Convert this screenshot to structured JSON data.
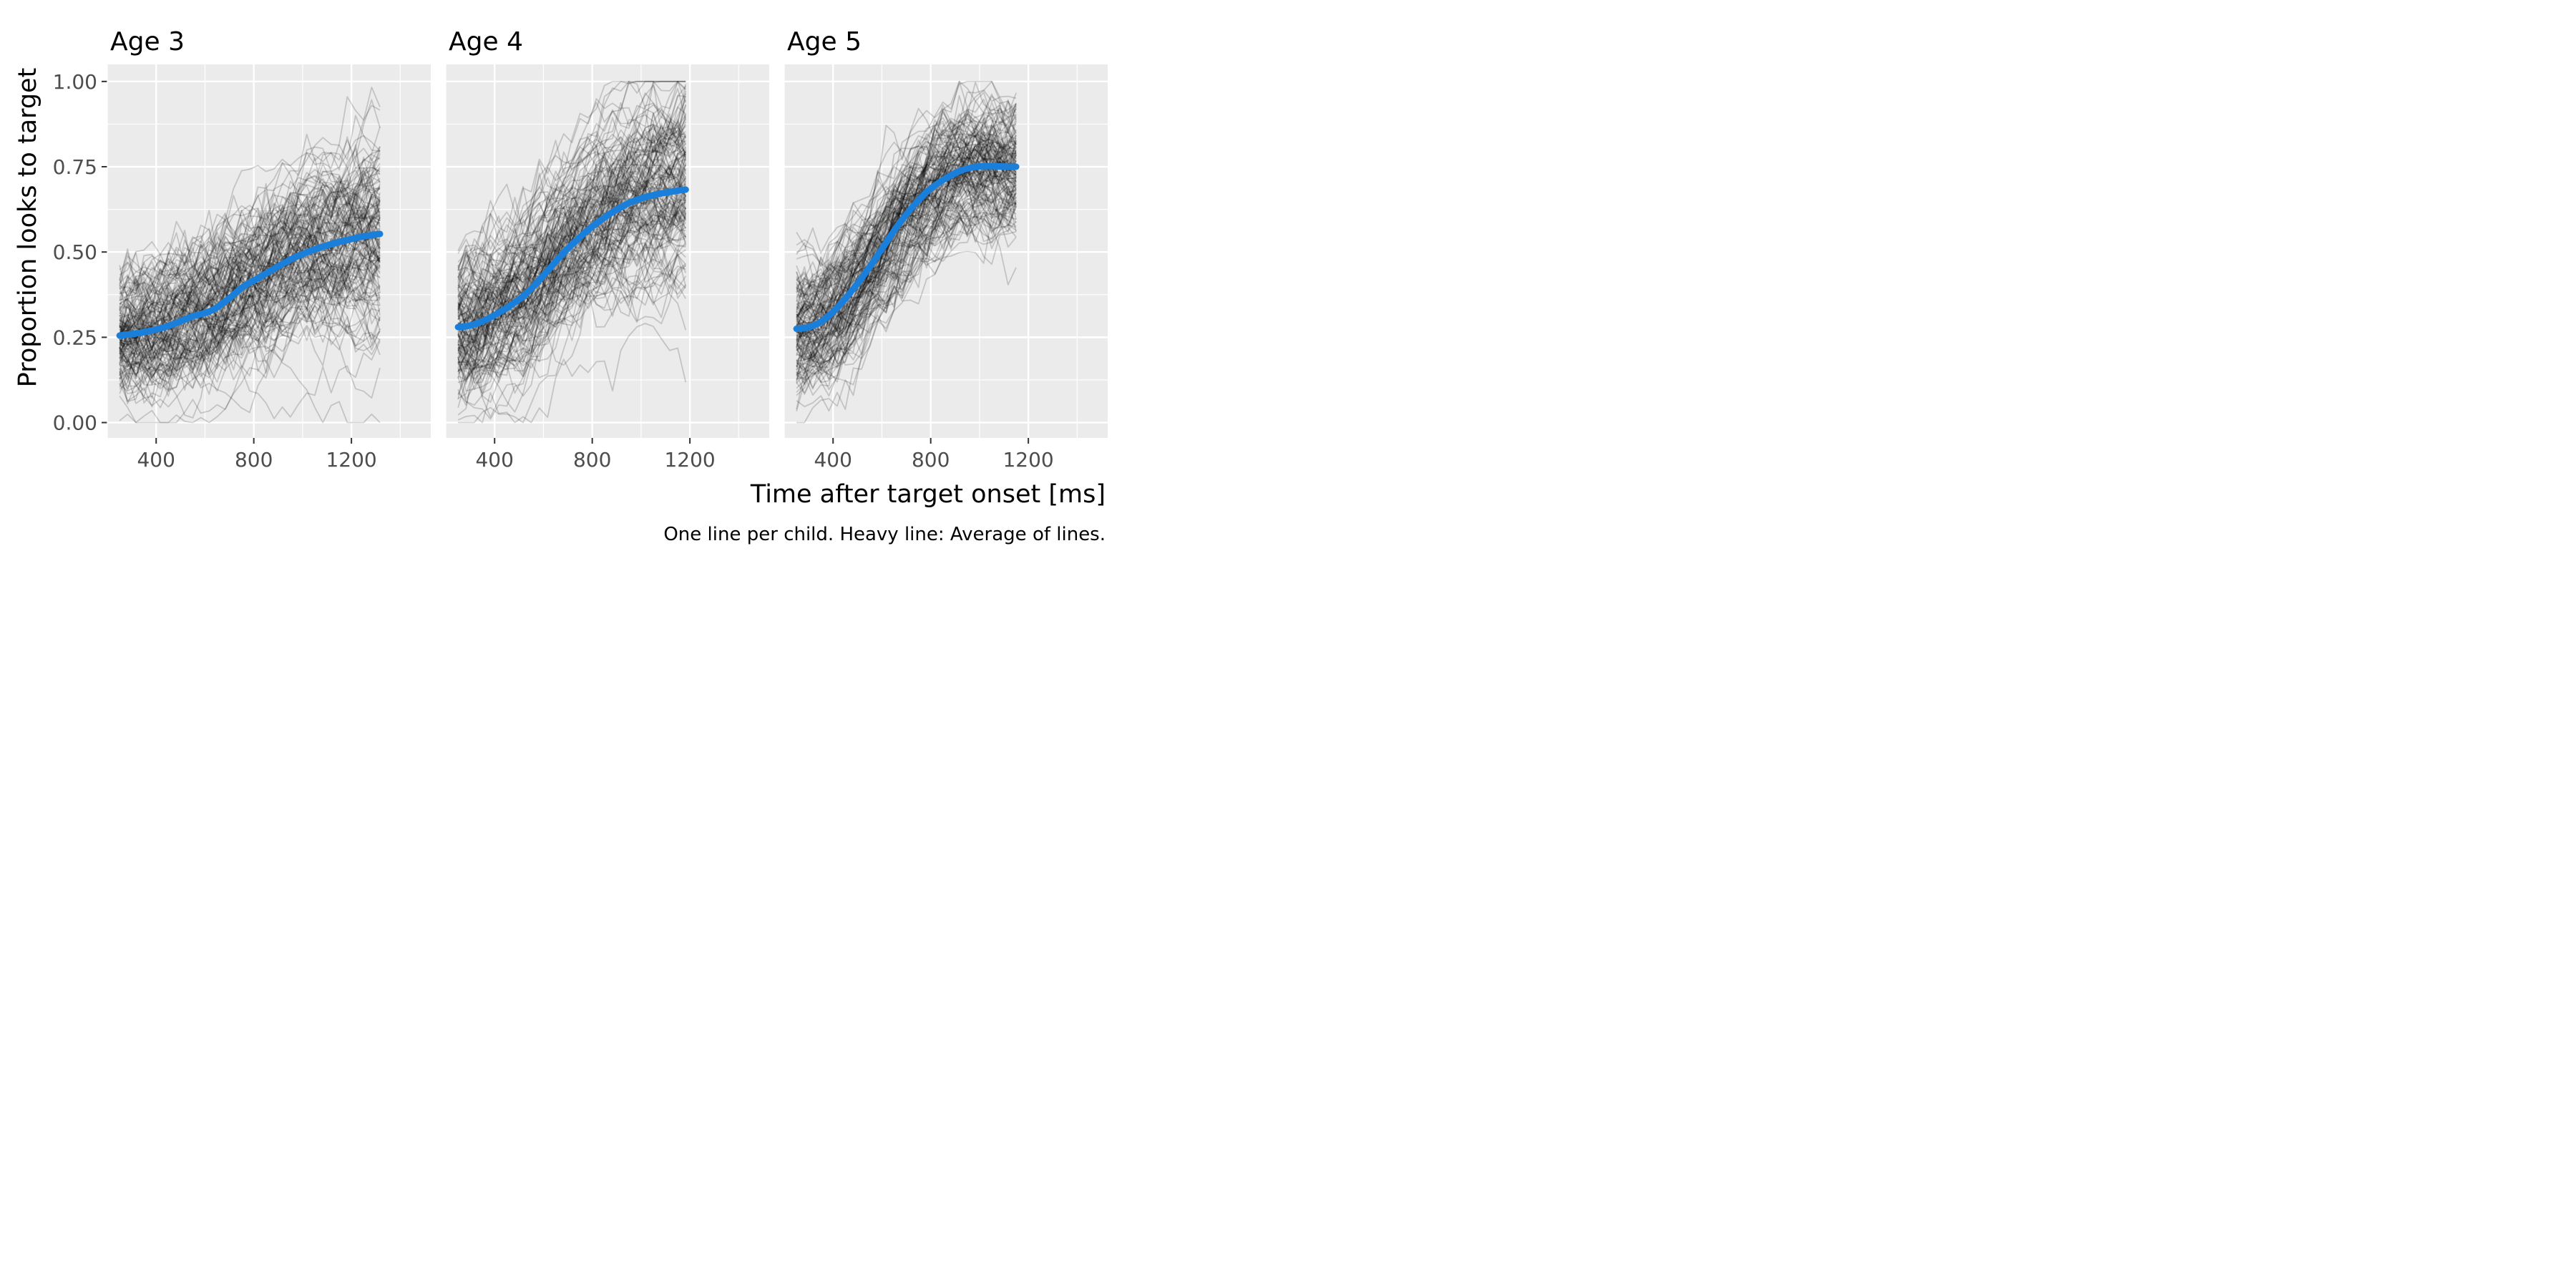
{
  "chart_data": {
    "type": "line",
    "ylabel": "Proportion looks to target",
    "xlabel": "Time after target onset [ms]",
    "caption": "One line per child. Heavy line: Average of lines.",
    "xlim": [
      200,
      1525
    ],
    "ylim": [
      -0.045,
      1.05
    ],
    "x_ticks": [
      400,
      800,
      1200
    ],
    "x_tick_labels": [
      "400",
      "800",
      "1200"
    ],
    "y_ticks": [
      0,
      0.25,
      0.5,
      0.75,
      1.0
    ],
    "y_tick_labels": [
      "0.00",
      "0.25",
      "0.50",
      "0.75",
      "1.00"
    ],
    "grid": true,
    "colors": {
      "panel_bg": "#ebebeb",
      "grid": "#ffffff",
      "child_line": "#000000",
      "average_line": "#1a7fdb",
      "tick_text": "#4d4d4d"
    },
    "x": [
      250,
      283,
      317,
      350,
      383,
      417,
      450,
      483,
      517,
      550,
      583,
      617,
      650,
      683,
      717,
      750,
      783,
      817,
      850,
      883,
      917,
      950,
      983,
      1017,
      1050,
      1083,
      1117,
      1150,
      1183,
      1217,
      1250,
      1283,
      1317,
      1350,
      1383,
      1417,
      1450,
      1483,
      1500
    ],
    "panels": [
      {
        "title": "Age 3",
        "average": [
          0.255,
          0.258,
          0.261,
          0.265,
          0.27,
          0.276,
          0.283,
          0.292,
          0.302,
          0.312,
          0.318,
          0.325,
          0.338,
          0.355,
          0.375,
          0.395,
          0.41,
          0.423,
          0.437,
          0.451,
          0.465,
          0.478,
          0.489,
          0.499,
          0.508,
          0.516,
          0.523,
          0.53,
          0.535,
          0.541,
          0.546,
          0.55,
          0.553
        ],
        "children": {
          "count": 150,
          "spread_start": 0.09,
          "spread_end": 0.17,
          "noise": 0.045,
          "seed": 11
        }
      },
      {
        "title": "Age 4",
        "average": [
          0.28,
          0.282,
          0.288,
          0.297,
          0.308,
          0.322,
          0.336,
          0.352,
          0.37,
          0.392,
          0.418,
          0.445,
          0.472,
          0.498,
          0.522,
          0.544,
          0.565,
          0.584,
          0.601,
          0.617,
          0.631,
          0.644,
          0.653,
          0.661,
          0.667,
          0.672,
          0.676,
          0.68,
          0.683
        ],
        "children": {
          "count": 150,
          "spread_start": 0.1,
          "spread_end": 0.15,
          "noise": 0.045,
          "seed": 23
        }
      },
      {
        "title": "Age 5",
        "average": [
          0.275,
          0.277,
          0.283,
          0.295,
          0.313,
          0.336,
          0.363,
          0.392,
          0.423,
          0.456,
          0.491,
          0.527,
          0.563,
          0.595,
          0.625,
          0.652,
          0.676,
          0.695,
          0.711,
          0.725,
          0.737,
          0.745,
          0.75,
          0.752,
          0.752,
          0.751,
          0.75,
          0.75
        ],
        "children": {
          "count": 150,
          "spread_start": 0.09,
          "spread_end": 0.1,
          "noise": 0.04,
          "seed": 37
        }
      }
    ]
  }
}
